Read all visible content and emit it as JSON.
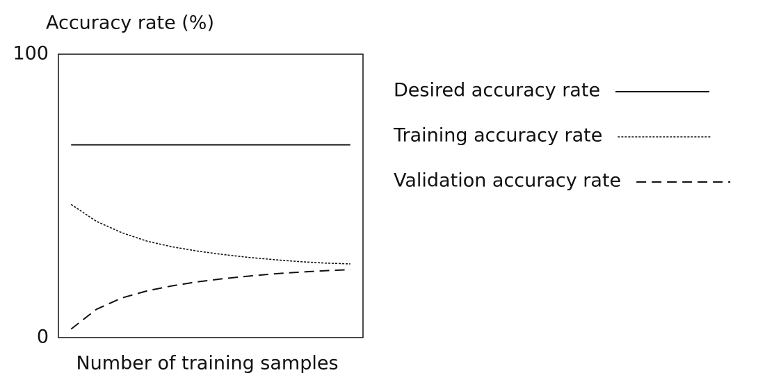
{
  "chart_data": {
    "type": "line",
    "ylabel": "Accuracy rate (%)",
    "xlabel": "Number of training samples",
    "categories": [
      null,
      null,
      null,
      null,
      null,
      null,
      null,
      null,
      null,
      null,
      null,
      null
    ],
    "ylim": [
      0,
      100
    ],
    "yticks": [
      0,
      100
    ],
    "grid": false,
    "legend": "right",
    "series": [
      {
        "name": "Desired accuracy rate",
        "color": "#111111",
        "line_style": "solid",
        "values": [
          68,
          68,
          68,
          68,
          68,
          68,
          68,
          68,
          68,
          68,
          68,
          68
        ]
      },
      {
        "name": "Training accuracy rate",
        "color": "#111111",
        "line_style": "dotted",
        "values": [
          47,
          41,
          37,
          34,
          32,
          30.5,
          29.3,
          28.3,
          27.5,
          26.8,
          26.3,
          26
        ]
      },
      {
        "name": "Validation accuracy rate",
        "color": "#111111",
        "line_style": "dashed",
        "values": [
          3,
          10,
          14,
          16.5,
          18.3,
          19.7,
          20.8,
          21.7,
          22.5,
          23.1,
          23.6,
          24
        ]
      }
    ]
  }
}
